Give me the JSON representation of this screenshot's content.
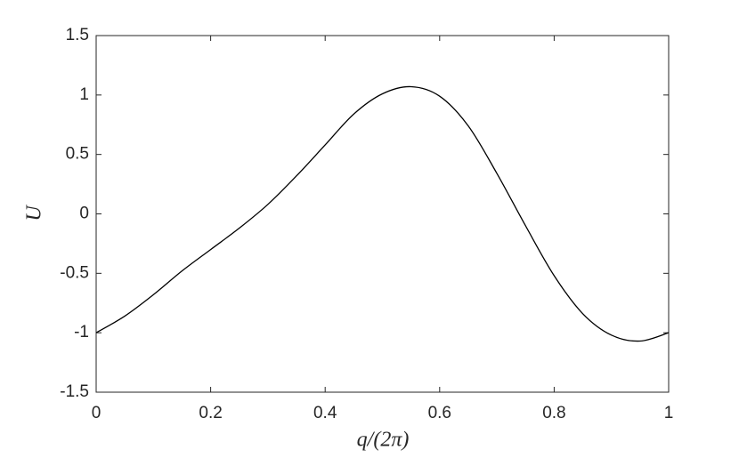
{
  "chart_data": {
    "type": "line",
    "xlabel": "q/(2π)",
    "ylabel": "U",
    "x": [
      0,
      0.05,
      0.1,
      0.15,
      0.2,
      0.25,
      0.3,
      0.35,
      0.4,
      0.45,
      0.5,
      0.55,
      0.6,
      0.65,
      0.7,
      0.75,
      0.8,
      0.85,
      0.9,
      0.95,
      1
    ],
    "values": [
      -1.0,
      -0.86,
      -0.68,
      -0.48,
      -0.3,
      -0.12,
      0.08,
      0.32,
      0.58,
      0.84,
      1.01,
      1.07,
      0.99,
      0.74,
      0.34,
      -0.1,
      -0.52,
      -0.84,
      -1.02,
      -1.07,
      -1.0
    ],
    "color": "#000000",
    "xlim": [
      0,
      1
    ],
    "xticks": [
      0,
      0.2,
      0.4,
      0.6,
      0.8,
      1
    ],
    "ylim": [
      -1.5,
      1.5
    ],
    "yticks": [
      -1.5,
      -1,
      -0.5,
      0,
      0.5,
      1,
      1.5
    ],
    "grid": false
  }
}
